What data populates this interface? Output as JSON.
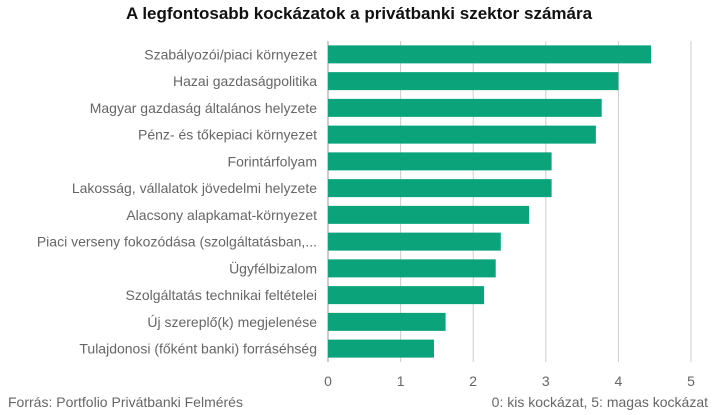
{
  "chart_data": {
    "type": "bar",
    "orientation": "horizontal",
    "title": "A legfontosabb kockázatok a privátbanki szektor számára",
    "categories": [
      "Szabályozói/piaci környezet",
      "Hazai gazdaságpolitika",
      "Magyar gazdaság általános helyzete",
      "Pénz- és tőkepiaci környezet",
      "Forintárfolyam",
      "Lakosság, vállalatok jövedelmi helyzete",
      "Alacsony alapkamat-környezet",
      "Piaci verseny fokozódása (szolgáltatásban,...",
      "Ügyfélbizalom",
      "Szolgáltatás technikai feltételei",
      "Új szereplő(k) megjelenése",
      "Tulajdonosi (főként banki) forráséhség"
    ],
    "values": [
      4.45,
      4.0,
      3.77,
      3.69,
      3.08,
      3.08,
      2.77,
      2.38,
      2.31,
      2.15,
      1.62,
      1.46
    ],
    "xlim": [
      0,
      5
    ],
    "xticks": [
      "0",
      "1",
      "2",
      "3",
      "4",
      "5"
    ],
    "grid": true,
    "color": "#0BA47A"
  },
  "footer": {
    "source": "Forrás: Portfolio Privátbanki Felmérés",
    "scale_note": "0: kis kockázat, 5: magas kockázat"
  }
}
